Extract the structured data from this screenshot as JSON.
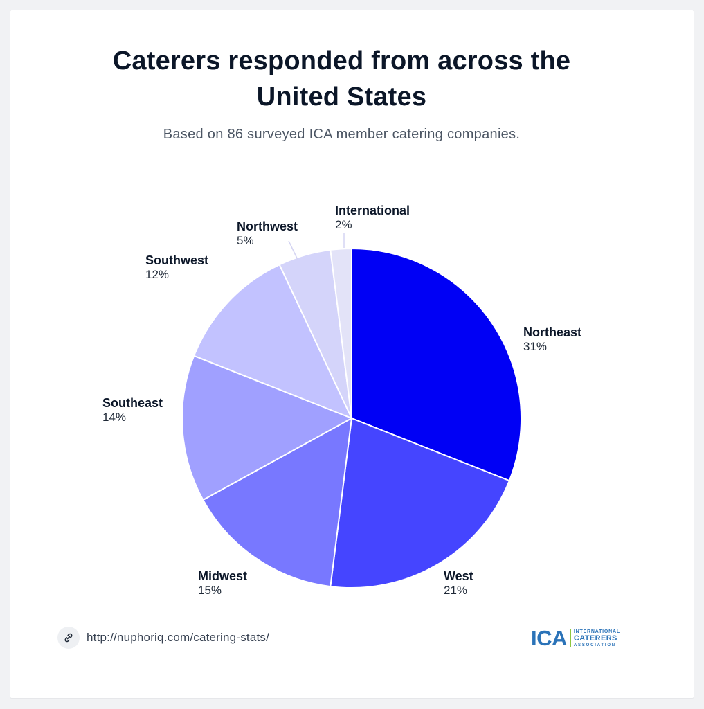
{
  "header": {
    "title_line1": "Caterers responded from across the",
    "title_line2": "United States",
    "subtitle": "Based on 86 surveyed ICA member catering companies."
  },
  "chart_data": {
    "type": "pie",
    "title": "Caterers responded from across the United States",
    "subtitle": "Based on 86 surveyed ICA member catering companies.",
    "unit": "%",
    "slices": [
      {
        "label": "Northeast",
        "value": 31,
        "display": "31%",
        "color": "#0000f5"
      },
      {
        "label": "West",
        "value": 21,
        "display": "21%",
        "color": "#4545ff"
      },
      {
        "label": "Midwest",
        "value": 15,
        "display": "15%",
        "color": "#7878ff"
      },
      {
        "label": "Southeast",
        "value": 14,
        "display": "14%",
        "color": "#a0a0ff"
      },
      {
        "label": "Southwest",
        "value": 12,
        "display": "12%",
        "color": "#c2c2ff"
      },
      {
        "label": "Northwest",
        "value": 5,
        "display": "5%",
        "color": "#d4d4fa"
      },
      {
        "label": "International",
        "value": 2,
        "display": "2%",
        "color": "#e3e3f8"
      }
    ],
    "start_angle": "12 o'clock",
    "direction": "clockwise",
    "legend": "none (direct labels)"
  },
  "footer": {
    "link_text": "http://nuphoriq.com/catering-stats/",
    "link_icon": "link-icon",
    "logo": {
      "mark": "ICA",
      "line1": "INTERNATIONAL",
      "line2": "CATERERS",
      "line3": "ASSOCIATION",
      "mark_color": "#2b73b8",
      "accent_color": "#8dc63f"
    }
  }
}
